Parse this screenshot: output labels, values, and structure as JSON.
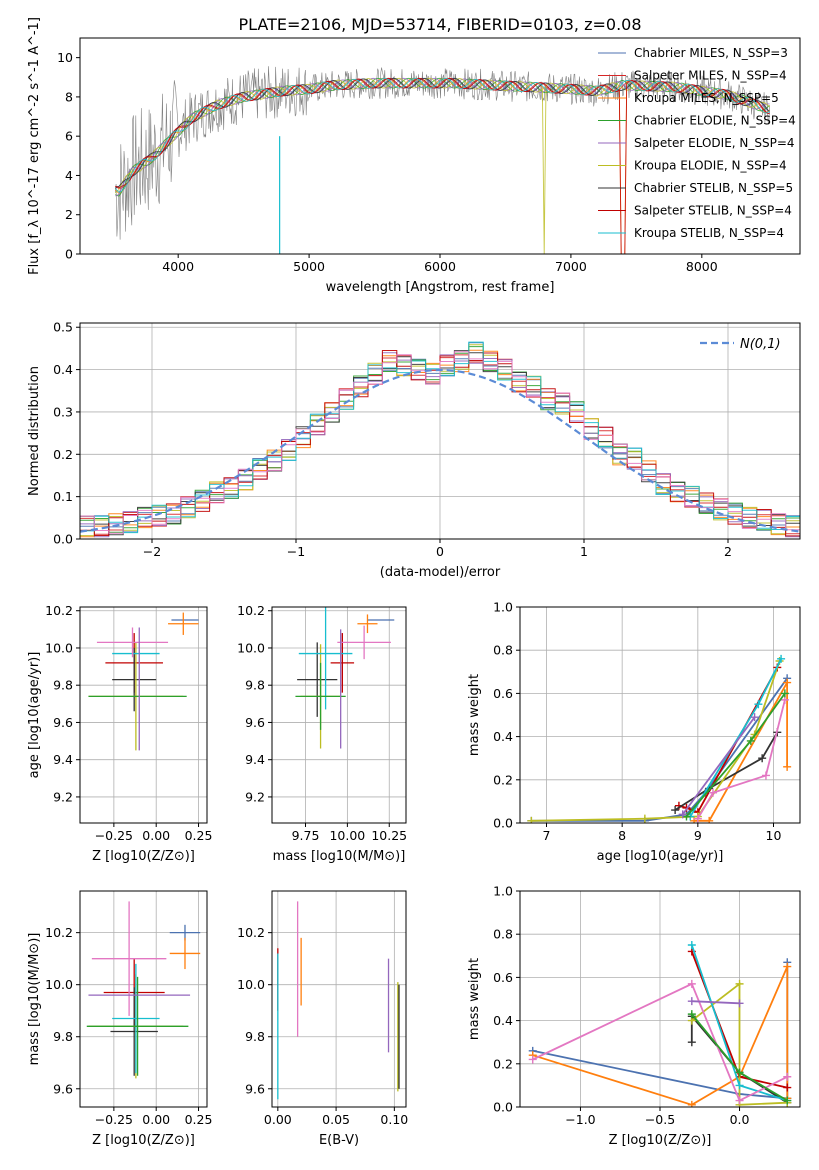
{
  "figure": {
    "title": "PLATE=2106, MJD=53714, FIBERID=0103, z=0.08"
  },
  "chart_data": [
    {
      "id": "spectrum",
      "type": "line",
      "xlabel": "wavelength [Angstrom, rest frame]",
      "ylabel": "Flux [f_λ 10^-17 erg cm^-2 s^-1 A^-1]",
      "xlim": [
        3250,
        8750
      ],
      "ylim": [
        0,
        11
      ],
      "xticks": [
        4000,
        5000,
        6000,
        7000,
        8000
      ],
      "yticks": [
        0,
        2,
        4,
        6,
        8,
        10
      ],
      "grid": false,
      "legend_position": "top-right",
      "data_envelope": {
        "wavelength": [
          3550,
          3650,
          3800,
          3950,
          4100,
          4300,
          4500,
          4800,
          5000,
          5200,
          5500,
          5800,
          6100,
          6400,
          6700,
          7000,
          7200,
          7400,
          7800,
          8200,
          8500
        ],
        "flux": [
          3.2,
          4.2,
          4.9,
          5.9,
          6.9,
          7.6,
          8.0,
          8.3,
          8.4,
          8.6,
          8.7,
          8.7,
          8.7,
          8.6,
          8.5,
          8.4,
          8.3,
          8.6,
          8.5,
          8.1,
          7.4
        ]
      },
      "series": [
        {
          "name": "Chabrier MILES, N_SSP=3",
          "color": "#4c72b0"
        },
        {
          "name": "Salpeter MILES, N_SSP=4",
          "color": "#d62728"
        },
        {
          "name": "Kroupa MILES, N_SSP=5",
          "color": "#ff7f0e"
        },
        {
          "name": "Chabrier ELODIE, N_SSP=4",
          "color": "#2ca02c"
        },
        {
          "name": "Salpeter ELODIE, N_SSP=4",
          "color": "#9467bd"
        },
        {
          "name": "Kroupa ELODIE, N_SSP=4",
          "color": "#bcbd22"
        },
        {
          "name": "Chabrier STELIB, N_SSP=5",
          "color": "#333333"
        },
        {
          "name": "Salpeter STELIB, N_SSP=4",
          "color": "#c00000"
        },
        {
          "name": "Kroupa STELIB, N_SSP=4",
          "color": "#17becf"
        }
      ]
    },
    {
      "id": "residuals",
      "type": "line",
      "xlabel": "(data-model)/error",
      "ylabel": "Normed distribution",
      "xlim": [
        -2.5,
        2.5
      ],
      "ylim": [
        0,
        0.51
      ],
      "xticks": [
        -2,
        -1,
        0,
        1,
        2
      ],
      "yticks": [
        0.0,
        0.1,
        0.2,
        0.3,
        0.4,
        0.5
      ],
      "grid": true,
      "legend": "N(0,1)",
      "legend_position": "top-right",
      "histogram_mean": {
        "x": [
          -2.45,
          -2.35,
          -2.25,
          -2.15,
          -2.05,
          -1.95,
          -1.85,
          -1.75,
          -1.65,
          -1.55,
          -1.45,
          -1.35,
          -1.25,
          -1.15,
          -1.05,
          -0.95,
          -0.85,
          -0.75,
          -0.65,
          -0.55,
          -0.45,
          -0.35,
          -0.25,
          -0.15,
          -0.05,
          0.05,
          0.15,
          0.25,
          0.35,
          0.45,
          0.55,
          0.65,
          0.75,
          0.85,
          0.95,
          1.05,
          1.15,
          1.25,
          1.35,
          1.45,
          1.55,
          1.65,
          1.75,
          1.85,
          1.95,
          2.05,
          2.15,
          2.25,
          2.35,
          2.45
        ],
        "y": [
          0.03,
          0.03,
          0.035,
          0.04,
          0.05,
          0.055,
          0.06,
          0.075,
          0.09,
          0.11,
          0.12,
          0.14,
          0.165,
          0.185,
          0.21,
          0.24,
          0.27,
          0.3,
          0.33,
          0.36,
          0.39,
          0.42,
          0.41,
          0.4,
          0.39,
          0.41,
          0.42,
          0.44,
          0.42,
          0.4,
          0.37,
          0.36,
          0.33,
          0.32,
          0.3,
          0.26,
          0.24,
          0.2,
          0.19,
          0.16,
          0.13,
          0.11,
          0.1,
          0.085,
          0.07,
          0.06,
          0.05,
          0.045,
          0.035,
          0.03
        ]
      }
    },
    {
      "id": "age-vs-Z",
      "type": "scatter",
      "xlabel": "Z [log10(Z/Z⊙)]",
      "ylabel": "age [log10(age/yr)]",
      "xlim": [
        -0.45,
        0.3
      ],
      "ylim": [
        9.06,
        10.22
      ],
      "xticks": [
        -0.25,
        0.0,
        0.25
      ],
      "yticks": [
        9.2,
        9.4,
        9.6,
        9.8,
        10.0,
        10.2
      ],
      "points": [
        {
          "x": 0.17,
          "y": 10.15,
          "xerr": 0.08,
          "yerr": 0.0,
          "color": "#4c72b0"
        },
        {
          "x": 0.16,
          "y": 10.13,
          "xerr": 0.09,
          "yerr": 0.06,
          "color": "#ff7f0e"
        },
        {
          "x": -0.13,
          "y": 9.92,
          "xerr": 0.17,
          "yerr": 0.16,
          "color": "#c00000"
        },
        {
          "x": -0.13,
          "y": 9.83,
          "xerr": 0.13,
          "yerr": 0.17,
          "color": "#333333"
        },
        {
          "x": -0.12,
          "y": 9.74,
          "xerr": 0.28,
          "yerr": 0.29,
          "color": "#bcbd22"
        },
        {
          "x": -0.12,
          "y": 9.97,
          "xerr": 0.14,
          "yerr": 0.0,
          "color": "#17becf"
        },
        {
          "x": -0.14,
          "y": 10.03,
          "xerr": 0.21,
          "yerr": 0.08,
          "color": "#e377c2"
        },
        {
          "x": -0.11,
          "y": 9.74,
          "xerr": 0.29,
          "yerr": 0.0,
          "color": "#2ca02c"
        },
        {
          "x": -0.1,
          "y": 9.78,
          "xerr": 0.0,
          "yerr": 0.33,
          "color": "#9467bd"
        }
      ]
    },
    {
      "id": "age-vs-mass",
      "type": "scatter",
      "xlabel": "mass [log10(M/M⊙)]",
      "ylabel": "",
      "xlim": [
        9.55,
        10.35
      ],
      "ylim": [
        9.06,
        10.22
      ],
      "xticks": [
        9.75,
        10.0,
        10.25
      ],
      "yticks": [
        9.2,
        9.4,
        9.6,
        9.8,
        10.0,
        10.2
      ],
      "points": [
        {
          "x": 10.2,
          "y": 10.15,
          "xerr": 0.08,
          "yerr": 0.0,
          "color": "#4c72b0"
        },
        {
          "x": 10.12,
          "y": 10.13,
          "xerr": 0.06,
          "yerr": 0.05,
          "color": "#ff7f0e"
        },
        {
          "x": 9.97,
          "y": 9.92,
          "xerr": 0.07,
          "yerr": 0.16,
          "color": "#c00000"
        },
        {
          "x": 9.82,
          "y": 9.83,
          "xerr": 0.12,
          "yerr": 0.2,
          "color": "#333333"
        },
        {
          "x": 9.84,
          "y": 9.74,
          "xerr": 0.12,
          "yerr": 0.28,
          "color": "#bcbd22"
        },
        {
          "x": 9.87,
          "y": 9.97,
          "xerr": 0.16,
          "yerr": 0.3,
          "color": "#17becf"
        },
        {
          "x": 10.1,
          "y": 10.03,
          "xerr": 0.16,
          "yerr": 0.09,
          "color": "#e377c2"
        },
        {
          "x": 9.84,
          "y": 9.74,
          "xerr": 0.15,
          "yerr": 0.18,
          "color": "#2ca02c"
        },
        {
          "x": 9.96,
          "y": 9.78,
          "xerr": 0.0,
          "yerr": 0.32,
          "color": "#9467bd"
        }
      ]
    },
    {
      "id": "massweight-vs-age",
      "type": "line",
      "xlabel": "age [log10(age/yr)]",
      "ylabel": "mass weight",
      "xlim": [
        6.65,
        10.35
      ],
      "ylim": [
        0,
        1
      ],
      "xticks": [
        7,
        8,
        9,
        10
      ],
      "yticks": [
        0.0,
        0.2,
        0.4,
        0.6,
        0.8,
        1.0
      ],
      "grid": true,
      "series": [
        {
          "color": "#4c72b0",
          "x": [
            6.8,
            8.3,
            8.85,
            9.1,
            10.18
          ],
          "y": [
            0.01,
            0.01,
            0.04,
            0.14,
            0.67
          ]
        },
        {
          "color": "#ff7f0e",
          "x": [
            8.95,
            9.15,
            10.18,
            10.18
          ],
          "y": [
            0.01,
            0.01,
            0.65,
            0.26
          ]
        },
        {
          "color": "#c00000",
          "x": [
            8.75,
            8.85,
            9.0,
            10.05
          ],
          "y": [
            0.08,
            0.07,
            0.05,
            0.72
          ]
        },
        {
          "color": "#333333",
          "x": [
            8.7,
            9.15,
            9.85,
            10.05
          ],
          "y": [
            0.06,
            0.16,
            0.3,
            0.42
          ]
        },
        {
          "color": "#bcbd22",
          "x": [
            6.8,
            8.3,
            9.0,
            9.75,
            10.08
          ],
          "y": [
            0.01,
            0.02,
            0.03,
            0.41,
            0.75
          ]
        },
        {
          "color": "#17becf",
          "x": [
            8.9,
            9.8,
            10.1
          ],
          "y": [
            0.03,
            0.55,
            0.76
          ]
        },
        {
          "color": "#e377c2",
          "x": [
            9.0,
            9.2,
            9.9,
            10.15
          ],
          "y": [
            0.02,
            0.14,
            0.22,
            0.57
          ]
        },
        {
          "color": "#2ca02c",
          "x": [
            8.85,
            9.7,
            10.15
          ],
          "y": [
            0.03,
            0.38,
            0.6
          ]
        },
        {
          "color": "#9467bd",
          "x": [
            8.8,
            9.75
          ],
          "y": [
            0.04,
            0.49
          ]
        }
      ]
    },
    {
      "id": "mass-vs-Z",
      "type": "scatter",
      "xlabel": "Z [log10(Z/Z⊙)]",
      "ylabel": "mass [log10(M/M⊙)]",
      "xlim": [
        -0.45,
        0.3
      ],
      "ylim": [
        9.53,
        10.36
      ],
      "xticks": [
        -0.25,
        0.0,
        0.25
      ],
      "yticks": [
        9.6,
        9.8,
        10.0,
        10.2
      ],
      "points": [
        {
          "x": 0.17,
          "y": 10.2,
          "xerr": 0.09,
          "yerr": 0.03,
          "color": "#4c72b0"
        },
        {
          "x": 0.17,
          "y": 10.12,
          "xerr": 0.09,
          "yerr": 0.06,
          "color": "#ff7f0e"
        },
        {
          "x": -0.13,
          "y": 9.97,
          "xerr": 0.18,
          "yerr": 0.13,
          "color": "#c00000"
        },
        {
          "x": -0.13,
          "y": 9.82,
          "xerr": 0.14,
          "yerr": 0.17,
          "color": "#333333"
        },
        {
          "x": -0.12,
          "y": 9.84,
          "xerr": 0.28,
          "yerr": 0.2,
          "color": "#bcbd22"
        },
        {
          "x": -0.12,
          "y": 9.87,
          "xerr": 0.14,
          "yerr": 0.21,
          "color": "#17becf"
        },
        {
          "x": -0.16,
          "y": 10.1,
          "xerr": 0.22,
          "yerr": 0.22,
          "color": "#e377c2"
        },
        {
          "x": -0.11,
          "y": 9.84,
          "xerr": 0.3,
          "yerr": 0.19,
          "color": "#2ca02c"
        },
        {
          "x": -0.1,
          "y": 9.96,
          "xerr": 0.3,
          "yerr": 0.0,
          "color": "#9467bd"
        }
      ]
    },
    {
      "id": "mass-vs-EBV",
      "type": "scatter",
      "xlabel": "E(B-V)",
      "ylabel": "",
      "xlim": [
        -0.005,
        0.11
      ],
      "ylim": [
        9.53,
        10.36
      ],
      "xticks": [
        0.0,
        0.05,
        0.1
      ],
      "yticks": [
        9.6,
        9.8,
        10.0,
        10.2
      ],
      "points": [
        {
          "x": 0.0,
          "y": 10.02,
          "yerr": 0.12,
          "color": "#c00000"
        },
        {
          "x": 0.0,
          "y": 9.84,
          "yerr": 0.28,
          "color": "#17becf"
        },
        {
          "x": 0.017,
          "y": 10.06,
          "yerr": 0.26,
          "color": "#e377c2"
        },
        {
          "x": 0.02,
          "y": 10.05,
          "yerr": 0.13,
          "color": "#ff7f0e"
        },
        {
          "x": 0.095,
          "y": 9.92,
          "yerr": 0.18,
          "color": "#9467bd"
        },
        {
          "x": 0.103,
          "y": 9.8,
          "yerr": 0.21,
          "color": "#bcbd22"
        },
        {
          "x": 0.104,
          "y": 9.8,
          "yerr": 0.2,
          "color": "#333333"
        }
      ]
    },
    {
      "id": "massweight-vs-Z",
      "type": "line",
      "xlabel": "Z [log10(Z/Z⊙)]",
      "ylabel": "mass weight",
      "xlim": [
        -1.38,
        0.38
      ],
      "ylim": [
        0,
        1
      ],
      "xticks": [
        -1.0,
        -0.5,
        0.0
      ],
      "yticks": [
        0.0,
        0.2,
        0.4,
        0.6,
        0.8,
        1.0
      ],
      "grid": true,
      "series": [
        {
          "color": "#4c72b0",
          "x": [
            -1.3,
            0.0,
            0.3,
            0.3
          ],
          "y": [
            0.26,
            0.06,
            0.04,
            0.67
          ]
        },
        {
          "color": "#ff7f0e",
          "x": [
            -1.3,
            -0.3,
            0.0,
            0.3,
            0.3
          ],
          "y": [
            0.24,
            0.01,
            0.14,
            0.65,
            0.04
          ]
        },
        {
          "color": "#c00000",
          "x": [
            -0.3,
            0.0,
            0.3
          ],
          "y": [
            0.72,
            0.14,
            0.09
          ]
        },
        {
          "color": "#333333",
          "x": [
            -0.3,
            -0.3,
            0.0,
            0.3
          ],
          "y": [
            0.3,
            0.42,
            0.16,
            0.02
          ]
        },
        {
          "color": "#bcbd22",
          "x": [
            -0.3,
            0.0,
            0.0,
            0.3
          ],
          "y": [
            0.4,
            0.57,
            0.01,
            0.02
          ]
        },
        {
          "color": "#17becf",
          "x": [
            -0.3,
            0.0,
            0.3
          ],
          "y": [
            0.75,
            0.1,
            0.03
          ]
        },
        {
          "color": "#e377c2",
          "x": [
            -1.3,
            -0.3,
            0.0,
            0.3
          ],
          "y": [
            0.22,
            0.57,
            0.03,
            0.14
          ]
        },
        {
          "color": "#2ca02c",
          "x": [
            -0.3,
            0.0,
            0.3
          ],
          "y": [
            0.43,
            0.16,
            0.03
          ]
        },
        {
          "color": "#9467bd",
          "x": [
            -0.3,
            0.0
          ],
          "y": [
            0.49,
            0.48
          ]
        }
      ]
    }
  ]
}
